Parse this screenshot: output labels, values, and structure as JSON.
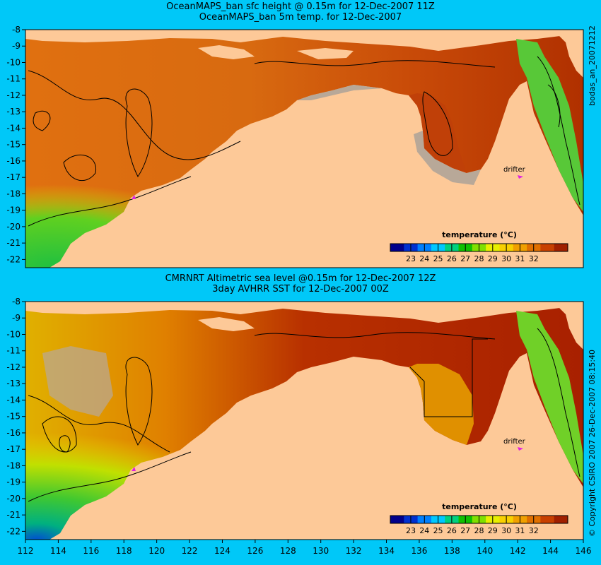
{
  "top_panel": {
    "title_line1": "OceanMAPS_ban sfc height @ 0.15m for 12-Dec-2007 11Z",
    "title_line2": "OceanMAPS_ban 5m temp. for 12-Dec-2007",
    "side_label": "bodas_an_20071212",
    "drifter_label": "drifter"
  },
  "bottom_panel": {
    "title_line1": "CMRNRT Altimetric sea level  @0.15m  for 12-Dec-2007 12Z",
    "title_line2": "3day AVHRR SST for 12-Dec-2007 00Z",
    "side_label": "© Copyright CSIRO 2007     26-Dec-2007 08:15:40",
    "drifter_label": "drifter"
  },
  "colorbar": {
    "title": "temperature (°C)",
    "ticks": [
      "23",
      "24",
      "25",
      "26",
      "27",
      "28",
      "29",
      "30",
      "31",
      "32"
    ],
    "colors": [
      "#00008b",
      "#0030d0",
      "#0080ff",
      "#00c8ff",
      "#00d080",
      "#10c000",
      "#80e000",
      "#e8f000",
      "#f8d000",
      "#f0a000",
      "#e07000",
      "#c84000",
      "#a02000"
    ]
  },
  "axes": {
    "lat_ticks": [
      "-8",
      "-9",
      "-10",
      "-11",
      "-12",
      "-13",
      "-14",
      "-15",
      "-16",
      "-17",
      "-18",
      "-19",
      "-20",
      "-21",
      "-22"
    ],
    "lon_ticks": [
      "112",
      "114",
      "116",
      "118",
      "120",
      "122",
      "124",
      "126",
      "128",
      "130",
      "132",
      "134",
      "136",
      "138",
      "140",
      "142",
      "144",
      "146"
    ]
  },
  "colors": {
    "background": "#00c8f8",
    "land": "#fdc998",
    "sea_warm": "#d86a10",
    "sea_hot": "#b02800",
    "sea_cool": "#30c030",
    "no_data": "#b8a898",
    "drifter_marker": "#e020e0"
  }
}
